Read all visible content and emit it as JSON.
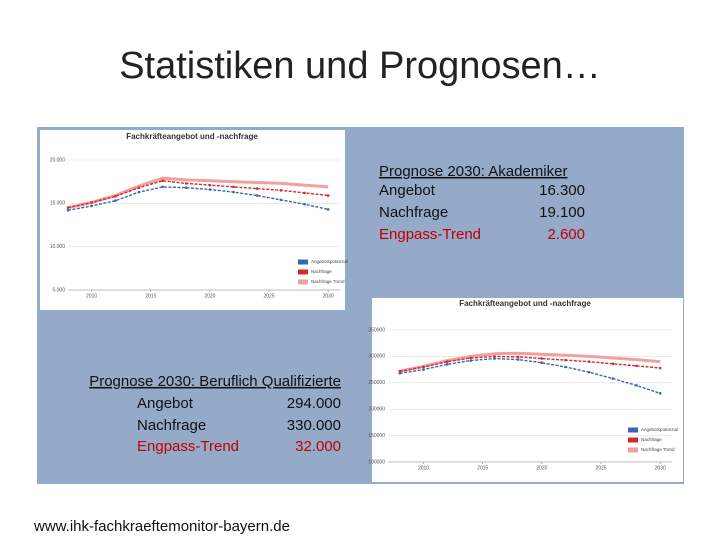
{
  "title": "Statistiken und Prognosen…",
  "url": "www.ihk-fachkraeftemonitor-bayern.de",
  "boxes": [
    {
      "heading": "Prognose 2030: Akademiker",
      "rows": [
        {
          "label": "Angebot",
          "value": "16.300"
        },
        {
          "label": "Nachfrage",
          "value": "19.100"
        },
        {
          "label": "Engpass-Trend",
          "value": "2.600"
        }
      ]
    },
    {
      "heading": "Prognose 2030: Beruflich Qualifizierte",
      "rows": [
        {
          "label": "Angebot",
          "value": "294.000"
        },
        {
          "label": "Nachfrage",
          "value": "330.000"
        },
        {
          "label": "Engpass-Trend",
          "value": "32.000"
        }
      ]
    }
  ],
  "chart_data": [
    {
      "type": "line",
      "title": "Fachkräfteangebot und -nachfrage",
      "x": [
        2008,
        2010,
        2012,
        2014,
        2016,
        2018,
        2020,
        2022,
        2024,
        2026,
        2028,
        2030
      ],
      "xlim": [
        2008,
        2031
      ],
      "xticks": [
        2010,
        2015,
        2020,
        2025,
        2030
      ],
      "ylim": [
        5000,
        20000
      ],
      "yticks": [
        {
          "value": 5000,
          "label": "5.000"
        },
        {
          "value": 10000,
          "label": "10.000"
        },
        {
          "value": 15000,
          "label": "15.000"
        },
        {
          "value": 20000,
          "label": "20.000"
        }
      ],
      "series": [
        {
          "name": "Angebotspotenzial",
          "color": "#3a66b0",
          "values": [
            14200,
            14700,
            15300,
            16300,
            16900,
            16800,
            16600,
            16300,
            15900,
            15400,
            14900,
            14300
          ]
        },
        {
          "name": "Nachfrage",
          "color": "#d42a2a",
          "values": [
            14500,
            15100,
            15800,
            16800,
            17600,
            17300,
            17100,
            16900,
            16700,
            16500,
            16200,
            15900
          ]
        },
        {
          "name": "Nachfrage Trend",
          "color": "#f0a0a0",
          "values": [
            14500,
            15100,
            15900,
            17000,
            17900,
            17700,
            17600,
            17500,
            17400,
            17300,
            17100,
            16900
          ]
        }
      ]
    },
    {
      "type": "line",
      "title": "Fachkräfteangebot und -nachfrage",
      "x": [
        2008,
        2010,
        2012,
        2014,
        2016,
        2018,
        2020,
        2022,
        2024,
        2026,
        2028,
        2030
      ],
      "xlim": [
        2007,
        2031
      ],
      "xticks": [
        2010,
        2015,
        2020,
        2025,
        2030
      ],
      "ylim": [
        100000,
        350000
      ],
      "yticks": [
        100000,
        150000,
        200000,
        250000,
        300000,
        350000
      ],
      "series": [
        {
          "name": "Angebotspotenzial",
          "color": "#3a66b0",
          "values": [
            268000,
            275000,
            285000,
            292000,
            296000,
            294000,
            288000,
            280000,
            270000,
            258000,
            245000,
            230000
          ]
        },
        {
          "name": "Nachfrage",
          "color": "#d42a2a",
          "values": [
            272000,
            280000,
            290000,
            297000,
            300000,
            299000,
            296000,
            293000,
            290000,
            286000,
            282000,
            278000
          ]
        },
        {
          "name": "Nachfrage Trend",
          "color": "#f0a0a0",
          "values": [
            272000,
            281000,
            292000,
            300000,
            305000,
            306000,
            304000,
            302000,
            300000,
            297000,
            294000,
            290000
          ]
        }
      ]
    }
  ]
}
